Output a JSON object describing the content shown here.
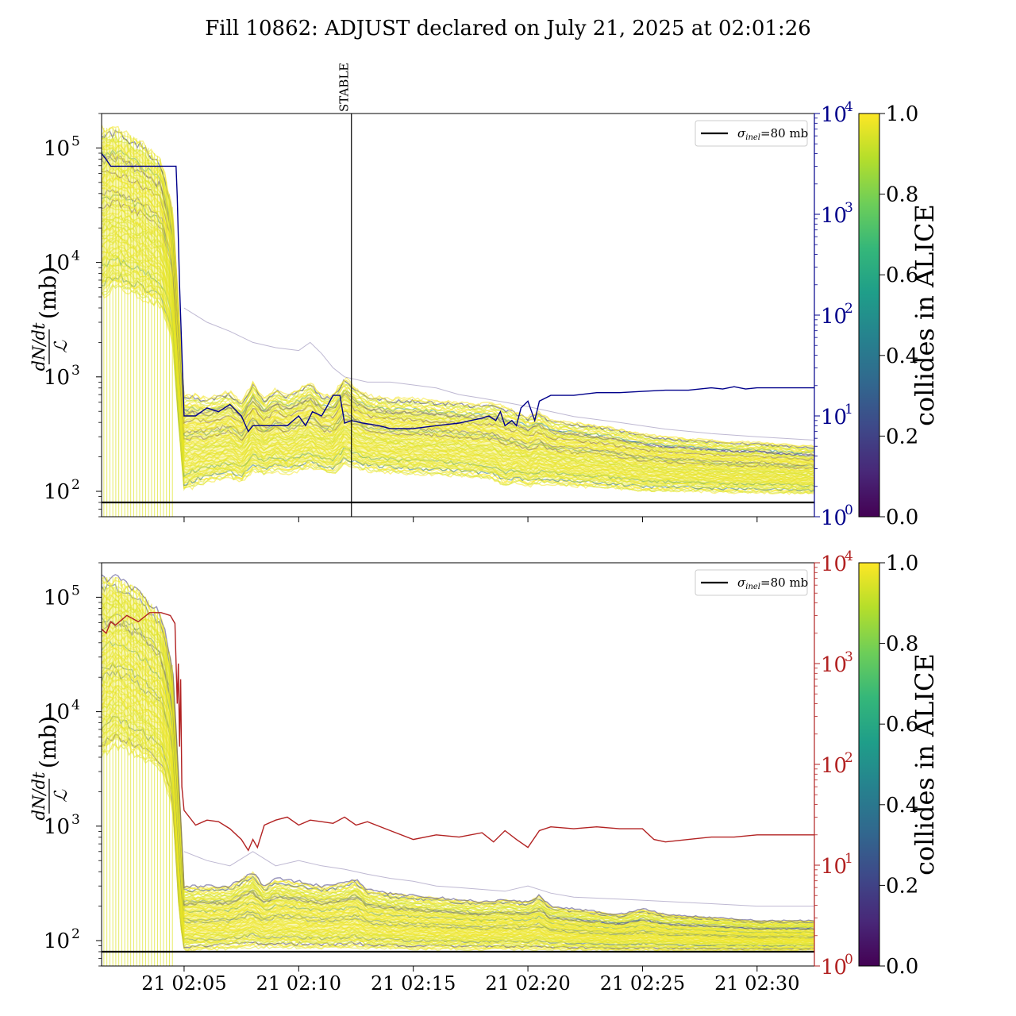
{
  "title": "Fill 10862: ADJUST declared on July 21, 2025 at 02:01:26",
  "colors": {
    "viridis": [
      "#440154",
      "#482878",
      "#3e4989",
      "#31688e",
      "#26828e",
      "#1f9e89",
      "#35b779",
      "#6ece58",
      "#b5de2b",
      "#fde725"
    ],
    "top_secondary": "#00008b",
    "bottom_secondary": "#b22222",
    "reference_line": "#000000"
  },
  "chart_data": [
    {
      "type": "line",
      "panel": "top",
      "ylabel_fraction_num": "dN/dt",
      "ylabel_fraction_den": "ℒ",
      "ylabel_unit": "(mb)",
      "yscale": "log",
      "ylim": [
        60,
        200000
      ],
      "y_ticks": [
        {
          "exp": "2"
        },
        {
          "exp": "3"
        },
        {
          "exp": "4"
        },
        {
          "exp": "5"
        }
      ],
      "x_ticks": [
        "21 02:05",
        "21 02:10",
        "21 02:15",
        "21 02:20",
        "21 02:25",
        "21 02:30"
      ],
      "x_tick_minutes": [
        5,
        10,
        15,
        20,
        25,
        30
      ],
      "xlim_minutes": [
        1.4,
        32.5
      ],
      "x_tick_labels_visible": false,
      "annotation": {
        "label": "STABLE",
        "x_minutes": 12.3
      },
      "legend": {
        "position": "top-right",
        "entries": [
          {
            "label_main": "σ",
            "label_sub": "inel",
            "label_rest": "=80 mb"
          }
        ]
      },
      "reference_line": {
        "y": 80
      },
      "secondary_axis": {
        "yscale": "log",
        "ylim": [
          1,
          10000
        ],
        "ticks": [
          {
            "exp": "0"
          },
          {
            "exp": "1"
          },
          {
            "exp": "2"
          },
          {
            "exp": "3"
          },
          {
            "exp": "4"
          }
        ],
        "series": {
          "x": [
            1.4,
            1.6,
            1.8,
            2,
            2.5,
            3,
            3.5,
            4,
            4.5,
            4.65,
            4.7,
            4.8,
            5,
            5.5,
            6,
            6.5,
            7,
            7.5,
            7.8,
            8,
            8.5,
            9,
            9.5,
            10,
            10.3,
            10.6,
            11,
            11.2,
            11.5,
            11.8,
            12,
            12.3,
            12.8,
            13.5,
            14,
            15,
            16,
            17,
            17.5,
            18,
            18.3,
            18.6,
            18.8,
            19,
            19.3,
            19.5,
            19.7,
            20,
            20.3,
            20.5,
            21,
            22,
            23,
            24,
            25,
            26,
            27,
            28,
            28.5,
            29,
            29.5,
            30,
            30.5,
            31,
            32,
            32.5
          ],
          "y": [
            4000,
            3500,
            3000,
            3000,
            3000,
            3000,
            3000,
            3000,
            3000,
            3000,
            1500,
            200,
            10,
            10,
            12,
            11,
            13,
            10,
            7,
            8,
            8,
            8,
            8,
            10,
            8,
            11,
            10,
            12,
            16,
            16,
            8.5,
            9,
            8.5,
            8,
            7.5,
            7.5,
            8,
            8.5,
            9,
            9.5,
            10,
            9,
            11,
            8,
            9,
            8,
            12,
            14,
            9,
            14,
            16,
            16,
            17,
            17,
            17.5,
            18,
            18,
            19,
            18.5,
            19.5,
            18.5,
            19,
            19,
            19,
            19,
            19
          ]
        }
      },
      "colorbar": {
        "label": "collides in ALICE",
        "range": [
          0,
          1
        ],
        "ticks": [
          "0.0",
          "0.2",
          "0.4",
          "0.6",
          "0.8",
          "1.0"
        ]
      },
      "band": {
        "x": [
          1.4,
          2,
          3,
          4,
          4.5,
          4.8,
          5,
          5.5,
          6,
          7,
          7.5,
          8,
          8.5,
          9,
          9.5,
          10,
          10.5,
          11,
          11.5,
          12,
          12.5,
          13,
          14,
          15,
          16,
          17,
          18,
          18.5,
          19,
          19.5,
          20,
          20.5,
          21,
          22,
          23,
          24,
          25,
          26,
          27,
          28,
          29,
          30,
          31,
          32,
          32.5
        ],
        "upper": [
          150000,
          150000,
          120000,
          80000,
          30000,
          3000,
          700,
          700,
          650,
          750,
          600,
          900,
          650,
          800,
          700,
          800,
          900,
          700,
          700,
          1000,
          800,
          700,
          650,
          650,
          620,
          600,
          580,
          600,
          550,
          500,
          450,
          500,
          420,
          400,
          380,
          350,
          320,
          300,
          290,
          280,
          270,
          270,
          260,
          250,
          250
        ],
        "lower": [
          5000,
          6000,
          5000,
          4000,
          2000,
          300,
          100,
          110,
          120,
          130,
          120,
          150,
          140,
          150,
          140,
          150,
          160,
          150,
          140,
          170,
          160,
          150,
          145,
          140,
          140,
          135,
          130,
          125,
          110,
          120,
          110,
          115,
          115,
          110,
          108,
          105,
          100,
          100,
          100,
          98,
          97,
          97,
          96,
          95,
          95
        ]
      },
      "faint_trace": {
        "x": [
          5,
          6,
          7,
          8,
          9,
          10,
          10.5,
          11,
          11.5,
          12,
          13,
          14,
          15,
          16,
          17,
          18,
          19,
          20,
          22,
          24,
          26,
          28,
          30,
          32.5
        ],
        "y": [
          4000,
          3000,
          2500,
          2000,
          1800,
          1700,
          2000,
          1600,
          1200,
          1000,
          900,
          900,
          850,
          800,
          700,
          650,
          600,
          550,
          450,
          400,
          350,
          320,
          300,
          280
        ]
      }
    },
    {
      "type": "line",
      "panel": "bottom",
      "ylabel_fraction_num": "dN/dt",
      "ylabel_fraction_den": "ℒ",
      "ylabel_unit": "(mb)",
      "yscale": "log",
      "ylim": [
        60,
        200000
      ],
      "y_ticks": [
        {
          "exp": "2"
        },
        {
          "exp": "3"
        },
        {
          "exp": "4"
        },
        {
          "exp": "5"
        }
      ],
      "x_ticks": [
        "21 02:05",
        "21 02:10",
        "21 02:15",
        "21 02:20",
        "21 02:25",
        "21 02:30"
      ],
      "x_tick_minutes": [
        5,
        10,
        15,
        20,
        25,
        30
      ],
      "xlim_minutes": [
        1.4,
        32.5
      ],
      "x_tick_labels_visible": true,
      "legend": {
        "position": "top-right",
        "entries": [
          {
            "label_main": "σ",
            "label_sub": "inel",
            "label_rest": "=80 mb"
          }
        ]
      },
      "reference_line": {
        "y": 80
      },
      "secondary_axis": {
        "yscale": "log",
        "ylim": [
          1,
          10000
        ],
        "ticks": [
          {
            "exp": "0"
          },
          {
            "exp": "1"
          },
          {
            "exp": "2"
          },
          {
            "exp": "3"
          },
          {
            "exp": "4"
          }
        ],
        "series": {
          "x": [
            1.4,
            1.6,
            1.8,
            2,
            2.5,
            3,
            3.5,
            4,
            4.4,
            4.6,
            4.7,
            4.75,
            4.8,
            4.85,
            4.9,
            5,
            5.5,
            6,
            6.5,
            7,
            7.5,
            7.8,
            8,
            8.2,
            8.5,
            9,
            9.5,
            10,
            10.5,
            11,
            11.5,
            12,
            12.5,
            13,
            14,
            15,
            16,
            17,
            18,
            18.5,
            19,
            19.5,
            20,
            20.5,
            21,
            22,
            23,
            24,
            25,
            25.5,
            26,
            27,
            28,
            29,
            30,
            31,
            32,
            32.5
          ],
          "y": [
            2200,
            2000,
            2600,
            2400,
            3000,
            2600,
            3200,
            3200,
            3000,
            2500,
            400,
            1000,
            150,
            700,
            60,
            35,
            25,
            28,
            27,
            23,
            18,
            14,
            18,
            15,
            25,
            28,
            30,
            25,
            28,
            27,
            26,
            30,
            25,
            27,
            22,
            18,
            20,
            19,
            21,
            17,
            22,
            18,
            15,
            22,
            24,
            23,
            24,
            23,
            23,
            18,
            17,
            18,
            19,
            19,
            20,
            20,
            20,
            20
          ]
        }
      },
      "colorbar": {
        "label": "collides in ALICE",
        "range": [
          0,
          1
        ],
        "ticks": [
          "0.0",
          "0.2",
          "0.4",
          "0.6",
          "0.8",
          "1.0"
        ]
      },
      "band": {
        "x": [
          1.4,
          2,
          3,
          4,
          4.5,
          4.8,
          5,
          6,
          7,
          7.5,
          8,
          8.5,
          9,
          10,
          11,
          12,
          12.5,
          13,
          14,
          15,
          16,
          17,
          18,
          19,
          20,
          20.5,
          21,
          22,
          23,
          24,
          25,
          26,
          27,
          28,
          29,
          30,
          31,
          32,
          32.5
        ],
        "upper": [
          150000,
          150000,
          120000,
          70000,
          25000,
          2000,
          300,
          300,
          300,
          350,
          400,
          300,
          350,
          330,
          300,
          320,
          350,
          280,
          260,
          250,
          240,
          230,
          220,
          230,
          220,
          250,
          200,
          190,
          180,
          170,
          190,
          170,
          165,
          160,
          155,
          150,
          150,
          150,
          150
        ],
        "lower": [
          4000,
          5000,
          4000,
          3000,
          1500,
          150,
          82,
          83,
          85,
          86,
          88,
          86,
          87,
          86,
          85,
          86,
          87,
          85,
          85,
          84,
          84,
          84,
          83,
          84,
          83,
          84,
          83,
          83,
          83,
          82,
          82,
          82,
          82,
          82,
          82,
          82,
          82,
          82,
          82
        ]
      },
      "faint_trace": {
        "x": [
          5,
          6,
          7,
          8,
          9,
          10,
          11,
          12,
          13,
          14,
          15,
          16,
          17,
          18,
          19,
          20,
          21,
          22,
          24,
          26,
          28,
          30,
          32.5
        ],
        "y": [
          600,
          500,
          450,
          600,
          450,
          500,
          450,
          420,
          380,
          350,
          330,
          300,
          290,
          280,
          270,
          300,
          260,
          240,
          230,
          220,
          210,
          200,
          200
        ]
      }
    }
  ]
}
